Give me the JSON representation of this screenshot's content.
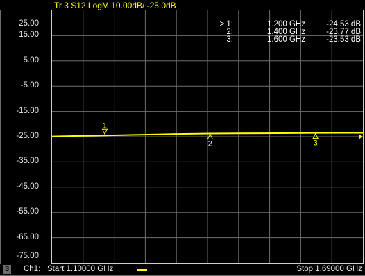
{
  "window": {
    "trace_title": "Tr 3  S12 LogM 10.00dB/  -25.0dB",
    "channel_badge": "3",
    "channel_label": "Ch1:",
    "start_label": "Start  1.10000 GHz",
    "stop_label": "Stop  1.69000 GHz"
  },
  "markers_table": [
    {
      "index": "> 1:",
      "freq": "1.200 GHz",
      "value": "-24.53 dB"
    },
    {
      "index": "2:",
      "freq": "1.400 GHz",
      "value": "-23.77 dB"
    },
    {
      "index": "3:",
      "freq": "1.600 GHz",
      "value": "-23.53 dB"
    }
  ],
  "colors": {
    "trace": "#ffff00",
    "grid": "#6e6e6e",
    "text": "#e8e8e8",
    "background": "#000000"
  },
  "chart_data": {
    "type": "line",
    "title": "Tr 3  S12 LogM 10.00dB/  -25.0dB",
    "xlabel": "",
    "ylabel": "",
    "xlim": [
      1.1,
      1.69
    ],
    "ylim": [
      -75,
      25
    ],
    "y_ticks": [
      "25.00",
      "15.00",
      "5.00",
      "-5.00",
      "-15.00",
      "-25.00",
      "-35.00",
      "-45.00",
      "-55.00",
      "-65.00",
      "-75.00"
    ],
    "grid": true,
    "reference_level": -25.0,
    "series": [
      {
        "x": [
          1.1,
          1.15,
          1.2,
          1.25,
          1.3,
          1.35,
          1.4,
          1.45,
          1.5,
          1.55,
          1.6,
          1.65,
          1.69
        ],
        "values": [
          -24.9,
          -24.7,
          -24.53,
          -24.3,
          -24.1,
          -23.9,
          -23.77,
          -23.7,
          -23.65,
          -23.6,
          -23.53,
          -23.5,
          -23.5
        ]
      }
    ],
    "markers": [
      {
        "label": "1",
        "x": 1.2,
        "y": -24.53,
        "style": "above"
      },
      {
        "label": "2",
        "x": 1.4,
        "y": -23.77,
        "style": "below"
      },
      {
        "label": "3",
        "x": 1.6,
        "y": -23.53,
        "style": "below"
      }
    ]
  }
}
